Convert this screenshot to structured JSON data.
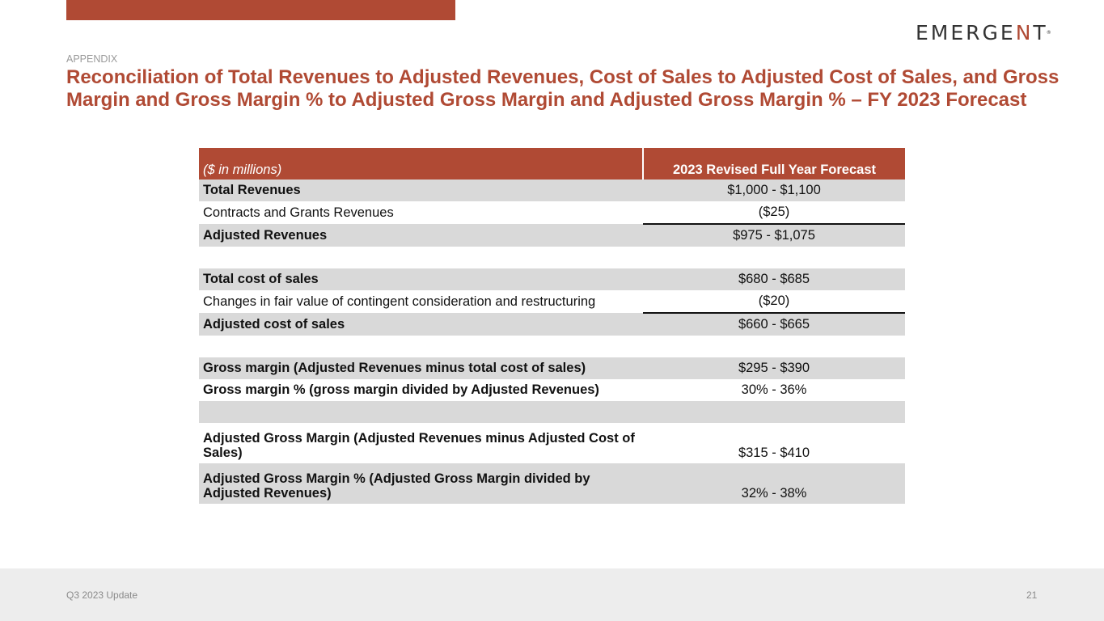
{
  "header": {
    "logo_prefix": "EMERGE",
    "logo_accent": "N",
    "logo_suffix": "T",
    "logo_mark": "®",
    "kicker": "APPENDIX",
    "title": "Reconciliation of Total Revenues to Adjusted Revenues, Cost of Sales to Adjusted Cost of Sales, and Gross Margin and Gross Margin % to Adjusted Gross Margin and Adjusted Gross Margin % – FY 2023 Forecast"
  },
  "table": {
    "col_label": "($ in millions)",
    "col_value": "2023 Revised Full Year Forecast",
    "rows": [
      {
        "label": "Total Revenues",
        "value": "$1,000 - $1,100"
      },
      {
        "label": "Contracts and Grants Revenues",
        "value": "($25)"
      },
      {
        "label": "Adjusted Revenues",
        "value": "$975 - $1,075"
      },
      {
        "label": "",
        "value": ""
      },
      {
        "label": "Total cost of sales",
        "value": "$680 - $685"
      },
      {
        "label": "Changes in fair value of contingent consideration and restructuring",
        "value": "($20)"
      },
      {
        "label": "Adjusted cost of sales",
        "value": "$660 - $665"
      },
      {
        "label": "",
        "value": ""
      },
      {
        "label": "Gross margin (Adjusted Revenues minus total cost of sales)",
        "value": "$295 - $390"
      },
      {
        "label": "Gross margin % (gross margin divided by Adjusted Revenues)",
        "value": "30% - 36%"
      },
      {
        "label": "",
        "value": ""
      },
      {
        "label": "Adjusted Gross Margin (Adjusted Revenues minus Adjusted Cost of Sales)",
        "value": "$315 - $410"
      },
      {
        "label": "Adjusted Gross Margin % (Adjusted Gross Margin divided by Adjusted Revenues)",
        "value": "32% - 38%"
      }
    ]
  },
  "footer": {
    "left": "Q3 2023 Update",
    "page_number": "21"
  },
  "colors": {
    "brand": "#b04a34",
    "row_shade": "#d9d9d9",
    "footer_bg": "#ededed"
  }
}
